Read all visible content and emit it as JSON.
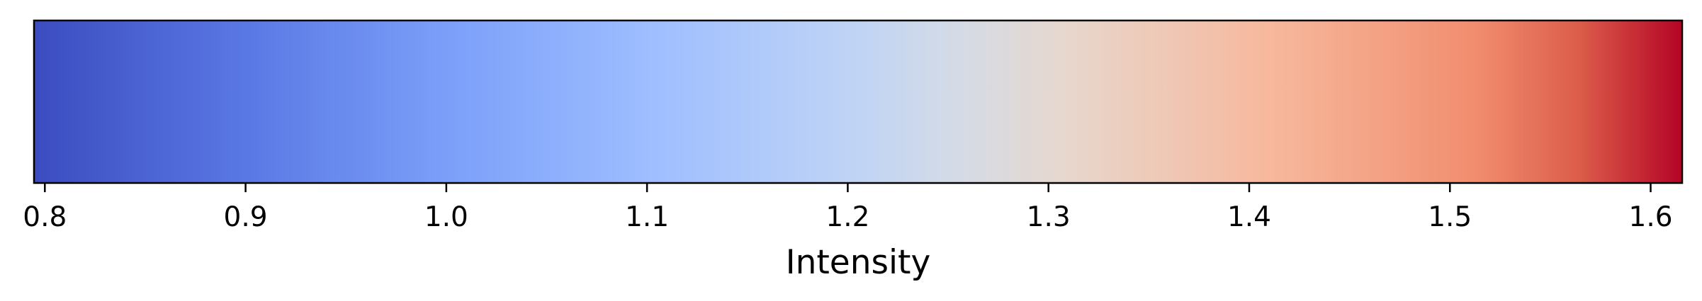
{
  "chart_data": {
    "type": "colorbar",
    "orientation": "horizontal",
    "colormap": "coolwarm",
    "xlabel": "Intensity",
    "range": [
      0.7946,
      1.6157
    ],
    "ticks": [
      0.8,
      0.9,
      1.0,
      1.1,
      1.2,
      1.3,
      1.4,
      1.5,
      1.6
    ],
    "tick_labels": [
      "0.8",
      "0.9",
      "1.0",
      "1.1",
      "1.2",
      "1.3",
      "1.4",
      "1.5",
      "1.6"
    ],
    "color_stops": [
      {
        "at": 0.0,
        "color": "#3b4cc0"
      },
      {
        "at": 0.125,
        "color": "#5977e3"
      },
      {
        "at": 0.25,
        "color": "#7b9ff9"
      },
      {
        "at": 0.375,
        "color": "#9ebeff"
      },
      {
        "at": 0.5,
        "color": "#c0d4f5"
      },
      {
        "at": 0.5625,
        "color": "#d5dbe5"
      },
      {
        "at": 0.625,
        "color": "#e7d7ce"
      },
      {
        "at": 0.75,
        "color": "#f7b89c"
      },
      {
        "at": 0.875,
        "color": "#f18d6f"
      },
      {
        "at": 0.9375,
        "color": "#dc5d4a"
      },
      {
        "at": 1.0,
        "color": "#b40426"
      }
    ]
  }
}
